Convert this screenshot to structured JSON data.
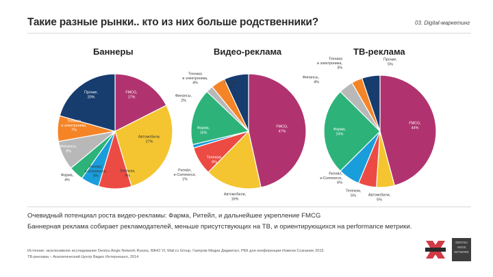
{
  "slide": {
    "title": "Такие разные рынки.. кто из них больше родственники?",
    "tag": "03. Digital-маркетинг",
    "insight_1": "Очевидный потенциал роста видео-рекламы: Фарма, Ритейл, и дальнейшее укрепление FMCG",
    "insight_2": "Баннерная реклама собирает рекламодателей, меньше присутствующих на ТВ, и ориентирующихся на performance метрики.",
    "source_1": "Источник: эксклюзивное исследование Dentsu Aegis Network Russia, IMHO VI, Mail.ru Group, Газпром Медиа Диджитал, РБК для конференции Измени Сознание 2015.",
    "source_2": "ТВ-реклама – Аналитический Центр Видео Интернешнл, 2014",
    "logo_box_lines": [
      "DENTSU",
      "AEGIS",
      "NETWORK"
    ]
  },
  "colors": {
    "fmcg": "#b0336f",
    "auto": "#f4c531",
    "telecom": "#ec4b43",
    "retail": "#1a9ddb",
    "pharma": "#2db37a",
    "finance": "#b8b8b8",
    "tech": "#f58426",
    "other": "#173c6e"
  },
  "chart_data": [
    {
      "type": "pie",
      "title": "Баннеры",
      "slices": [
        {
          "label": "FMCG",
          "value": 17,
          "color": "#b0336f"
        },
        {
          "label": "Автомобили",
          "value": 27,
          "color": "#f4c531"
        },
        {
          "label": "Телеком",
          "value": 9,
          "color": "#ec4b43"
        },
        {
          "label": "Ритейл, e-Commerce",
          "value": 5,
          "color": "#1a9ddb"
        },
        {
          "label": "Фарма",
          "value": 4,
          "color": "#2db37a"
        },
        {
          "label": "Финансы",
          "value": 8,
          "color": "#b8b8b8"
        },
        {
          "label": "Техника и электроника",
          "value": 7,
          "color": "#f58426"
        },
        {
          "label": "Прочие",
          "value": 20,
          "color": "#173c6e"
        }
      ],
      "labels": [
        {
          "lines": [
            "FMCG,",
            "17%"
          ],
          "anchor": "middle",
          "fill": "#ffffff"
        },
        {
          "lines": [
            "Автомобили,",
            "27%"
          ],
          "anchor": "middle",
          "fill": "#333333"
        },
        {
          "lines": [
            "Телеком,",
            "9%"
          ],
          "anchor": "middle",
          "fill": "#333333"
        },
        {
          "lines": [
            "Ритейл,",
            "e-Commerce,",
            "5%"
          ],
          "anchor": "middle",
          "fill": "#333333"
        },
        {
          "lines": [
            "Фарма,",
            "4%"
          ],
          "anchor": "middle",
          "fill": "#333333"
        },
        {
          "lines": [
            "Финансы,",
            "8%"
          ],
          "anchor": "middle",
          "fill": "#ffffff"
        },
        {
          "lines": [
            "Техника",
            "и электроника,",
            "7%"
          ],
          "anchor": "middle",
          "fill": "#ffffff"
        },
        {
          "lines": [
            "Прочие,",
            "20%"
          ],
          "anchor": "middle",
          "fill": "#ffffff"
        }
      ]
    },
    {
      "type": "pie",
      "title": "Видео-реклама",
      "slices": [
        {
          "label": "FMCG",
          "value": 47,
          "color": "#b0336f"
        },
        {
          "label": "Автомобили",
          "value": 16,
          "color": "#f4c531"
        },
        {
          "label": "Телеком",
          "value": 8,
          "color": "#ec4b43"
        },
        {
          "label": "Ритейл, e-Commerce",
          "value": 1,
          "color": "#1a9ddb"
        },
        {
          "label": "Фарма",
          "value": 16,
          "color": "#2db37a"
        },
        {
          "label": "Финансы",
          "value": 2,
          "color": "#b8b8b8"
        },
        {
          "label": "Техника и электроника",
          "value": 4,
          "color": "#f58426"
        },
        {
          "label": "Прочие",
          "value": 7,
          "color": "#173c6e"
        }
      ],
      "labels": [
        {
          "lines": [
            "FMCG,",
            "47%"
          ],
          "anchor": "middle",
          "fill": "#ffffff"
        },
        {
          "lines": [
            "Автомобили,",
            "16%"
          ],
          "anchor": "middle",
          "fill": "#333333"
        },
        {
          "lines": [
            "Телеком,",
            "8%"
          ],
          "anchor": "middle",
          "fill": "#ffffff"
        },
        {
          "lines": [
            "Ритейл,",
            "e-Commerce,",
            "1%"
          ],
          "anchor": "middle",
          "fill": "#333333"
        },
        {
          "lines": [
            "Фарма,",
            "16%"
          ],
          "anchor": "middle",
          "fill": "#ffffff"
        },
        {
          "lines": [
            "Финансы,",
            "2%"
          ],
          "anchor": "middle",
          "fill": "#333333"
        },
        {
          "lines": [
            "Техника",
            "и электроника,",
            "4%"
          ],
          "anchor": "middle",
          "fill": "#333333"
        },
        {
          "lines": [
            "Прочие,",
            "7%"
          ],
          "anchor": "middle",
          "fill": "#333333"
        }
      ]
    },
    {
      "type": "pie",
      "title": "ТВ-реклама",
      "slices": [
        {
          "label": "FMCG",
          "value": 44,
          "color": "#b0336f"
        },
        {
          "label": "Автомобили",
          "value": 5,
          "color": "#f4c531"
        },
        {
          "label": "Телеком",
          "value": 5,
          "color": "#ec4b43"
        },
        {
          "label": "Ритейл, e-Commerce",
          "value": 6,
          "color": "#1a9ddb"
        },
        {
          "label": "Фарма",
          "value": 24,
          "color": "#2db37a"
        },
        {
          "label": "Финансы",
          "value": 4,
          "color": "#b8b8b8"
        },
        {
          "label": "Техника и электроника",
          "value": 3,
          "color": "#f58426"
        },
        {
          "label": "Прочие",
          "value": 5,
          "color": "#173c6e"
        }
      ],
      "labels": [
        {
          "lines": [
            "FMCG,",
            "44%"
          ],
          "anchor": "middle",
          "fill": "#ffffff"
        },
        {
          "lines": [
            "Автомобили,",
            "5%"
          ],
          "anchor": "middle",
          "fill": "#333333"
        },
        {
          "lines": [
            "Телеком,",
            "5%"
          ],
          "anchor": "middle",
          "fill": "#333333"
        },
        {
          "lines": [
            "Ритейл,",
            "e-Commerce,",
            "6%"
          ],
          "anchor": "end",
          "fill": "#333333"
        },
        {
          "lines": [
            "Фарма,",
            "24%"
          ],
          "anchor": "middle",
          "fill": "#ffffff"
        },
        {
          "lines": [
            "Финансы,",
            "4%"
          ],
          "anchor": "end",
          "fill": "#333333"
        },
        {
          "lines": [
            "Техника",
            "и электроника,",
            "3%"
          ],
          "anchor": "end",
          "fill": "#333333"
        },
        {
          "lines": [
            "Прочие,",
            "5%"
          ],
          "anchor": "middle",
          "fill": "#333333"
        }
      ]
    }
  ]
}
